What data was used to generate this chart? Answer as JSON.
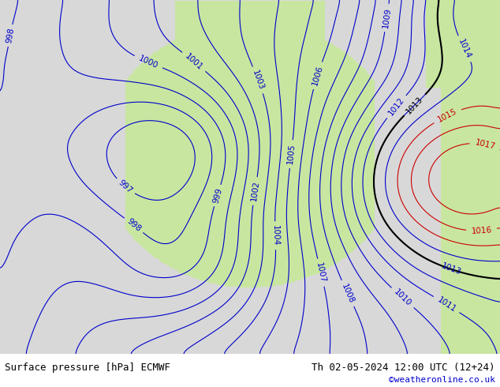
{
  "title_left": "Surface pressure [hPa] ECMWF",
  "title_right": "Th 02-05-2024 12:00 UTC (12+24)",
  "copyright": "©weatheronline.co.uk",
  "bg_color": "#d0d0d0",
  "land_color": "#c8e6a0",
  "sea_color": "#d8d8d8",
  "contour_color_blue": "#0000cc",
  "contour_color_red": "#cc0000",
  "contour_color_black": "#000000",
  "label_fontsize": 7.5,
  "footer_fontsize": 9,
  "copyright_fontsize": 8,
  "pressure_min": 996,
  "pressure_max": 1020,
  "pressure_step": 1
}
